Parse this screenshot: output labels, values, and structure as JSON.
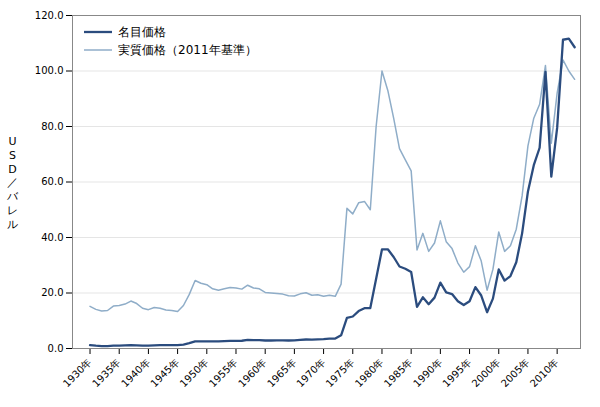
{
  "chart_data": {
    "type": "line",
    "ylabel": "U\nS\nD\n／\nバ\nレ\nル",
    "x": [
      1930,
      1931,
      1932,
      1933,
      1934,
      1935,
      1936,
      1937,
      1938,
      1939,
      1940,
      1941,
      1942,
      1943,
      1944,
      1945,
      1946,
      1947,
      1948,
      1949,
      1950,
      1951,
      1952,
      1953,
      1954,
      1955,
      1956,
      1957,
      1958,
      1959,
      1960,
      1961,
      1962,
      1963,
      1964,
      1965,
      1966,
      1967,
      1968,
      1969,
      1970,
      1971,
      1972,
      1973,
      1974,
      1975,
      1976,
      1977,
      1978,
      1979,
      1980,
      1981,
      1982,
      1983,
      1984,
      1985,
      1986,
      1987,
      1988,
      1989,
      1990,
      1991,
      1992,
      1993,
      1994,
      1995,
      1996,
      1997,
      1998,
      1999,
      2000,
      2001,
      2002,
      2003,
      2004,
      2005,
      2006,
      2007,
      2008,
      2009,
      2010,
      2011,
      2012,
      2013
    ],
    "series": [
      {
        "name": "名目価格",
        "color": "#2b4c7e",
        "values": [
          1.19,
          1.0,
          0.87,
          0.88,
          1.0,
          1.04,
          1.09,
          1.18,
          1.13,
          1.02,
          1.02,
          1.14,
          1.2,
          1.2,
          1.2,
          1.2,
          1.41,
          1.93,
          2.6,
          2.57,
          2.57,
          2.57,
          2.57,
          2.68,
          2.78,
          2.77,
          2.79,
          3.09,
          3.01,
          3.0,
          2.88,
          2.89,
          2.9,
          2.92,
          2.88,
          2.9,
          3.1,
          3.24,
          3.18,
          3.32,
          3.35,
          3.56,
          3.6,
          4.75,
          11.0,
          11.53,
          13.48,
          14.53,
          14.57,
          25.1,
          35.69,
          35.75,
          32.97,
          29.55,
          28.75,
          27.56,
          15.0,
          18.44,
          15.97,
          18.33,
          23.73,
          20.2,
          19.62,
          17.02,
          15.66,
          17.02,
          22.12,
          19.09,
          13.08,
          17.97,
          28.5,
          24.47,
          26.11,
          31.07,
          41.49,
          56.59,
          66.05,
          72.34,
          99.67,
          61.95,
          79.48,
          111.26,
          111.67,
          108.56
        ]
      },
      {
        "name": "実質価格（2011年基準）",
        "color": "#8fadc8",
        "values": [
          15.2,
          14.1,
          13.5,
          13.7,
          15.3,
          15.5,
          16.0,
          17.1,
          16.2,
          14.5,
          14.0,
          14.8,
          14.5,
          13.9,
          13.7,
          13.3,
          15.5,
          19.5,
          24.5,
          23.5,
          23.0,
          21.5,
          21.0,
          21.5,
          22.0,
          21.8,
          21.4,
          22.8,
          21.8,
          21.5,
          20.2,
          20.0,
          19.8,
          19.6,
          19.0,
          18.9,
          19.7,
          20.1,
          19.2,
          19.4,
          18.8,
          19.2,
          18.8,
          23.2,
          50.5,
          48.5,
          52.5,
          53.0,
          50.0,
          80.0,
          100.0,
          93.0,
          83.0,
          72.0,
          68.0,
          64.0,
          35.5,
          41.5,
          35.0,
          38.0,
          46.0,
          38.5,
          36.0,
          30.8,
          27.5,
          29.5,
          37.0,
          31.5,
          21.0,
          28.5,
          42.0,
          35.0,
          37.0,
          43.0,
          55.0,
          73.0,
          83.0,
          88.0,
          102.0,
          74.0,
          92.0,
          104.0,
          100.0,
          97.0
        ]
      }
    ],
    "xlim": [
      1927,
      2014
    ],
    "xticks": [
      {
        "value": 1930,
        "label": "1930年"
      },
      {
        "value": 1935,
        "label": "1935年"
      },
      {
        "value": 1940,
        "label": "1940年"
      },
      {
        "value": 1945,
        "label": "1945年"
      },
      {
        "value": 1950,
        "label": "1950年"
      },
      {
        "value": 1955,
        "label": "1955年"
      },
      {
        "value": 1960,
        "label": "1960年"
      },
      {
        "value": 1965,
        "label": "1965年"
      },
      {
        "value": 1970,
        "label": "1970年"
      },
      {
        "value": 1975,
        "label": "1975年"
      },
      {
        "value": 1980,
        "label": "1980年"
      },
      {
        "value": 1985,
        "label": "1985年"
      },
      {
        "value": 1990,
        "label": "1990年"
      },
      {
        "value": 1995,
        "label": "1995年"
      },
      {
        "value": 2000,
        "label": "2000年"
      },
      {
        "value": 2005,
        "label": "2005年"
      },
      {
        "value": 2010,
        "label": "2010年"
      }
    ],
    "ylim": [
      0,
      120
    ],
    "yticks": [
      {
        "value": 0,
        "label": "0.0"
      },
      {
        "value": 20,
        "label": "20.0"
      },
      {
        "value": 40,
        "label": "40.0"
      },
      {
        "value": 60,
        "label": "60.0"
      },
      {
        "value": 80,
        "label": "80.0"
      },
      {
        "value": 100,
        "label": "100.0"
      },
      {
        "value": 120,
        "label": "120.0"
      }
    ],
    "grid": true,
    "legend": "upper left"
  }
}
